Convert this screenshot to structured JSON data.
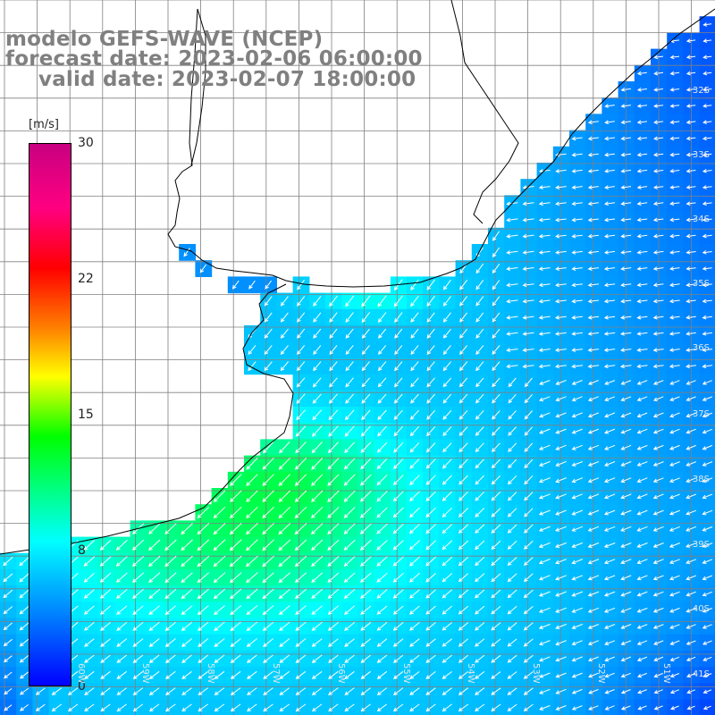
{
  "title": {
    "line1": "modelo GEFS-WAVE (NCEP)",
    "line2": "forecast date: 2023-02-06 06:00:00",
    "line3": "valid date: 2023-02-07 18:00:00"
  },
  "colorbar": {
    "unit": "[m/s]",
    "ticks": [
      "30",
      "22",
      "15",
      "8",
      "0"
    ],
    "tick_values": [
      30,
      22,
      15,
      8,
      0
    ],
    "colors": {
      "0": "#0000ff",
      "4": "#0080ff",
      "8": "#00ffff",
      "12": "#00ff00",
      "15": "#ffff00",
      "18": "#ff8000",
      "22": "#ff0000",
      "26": "#ff0080",
      "30": "#c80080"
    }
  },
  "lat_labels": [
    "32S",
    "33S",
    "34S",
    "35S",
    "36S",
    "37S",
    "38S",
    "39S",
    "40S",
    "41S"
  ],
  "lon_labels": [
    "60W",
    "59W",
    "58W",
    "57W",
    "56W",
    "55W",
    "54W",
    "53W",
    "52W",
    "51W"
  ],
  "map": {
    "land_color": "#ffffff",
    "grid_color": "#808080",
    "arrow_color": "#ffffff",
    "coast_color": "#000000"
  }
}
